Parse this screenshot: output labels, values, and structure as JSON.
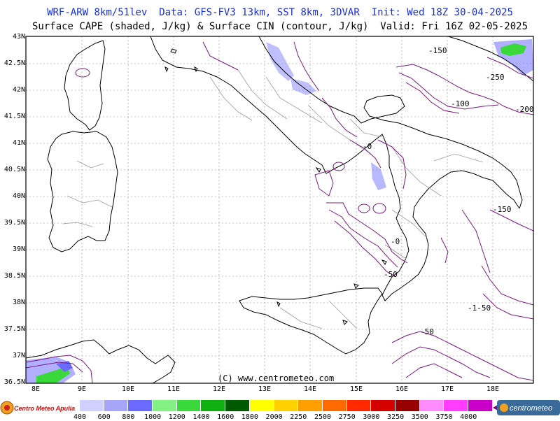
{
  "header": {
    "line1": "WRF-ARW 8km/51lev  Data: GFS-FV3 13km, SST 8km, 3DVAR  Init: Wed 18Z 30-04-2025",
    "line2": "Surface CAPE (shaded, J/kg) & Surface CIN (contour, J/kg)  Valid: Fri 16Z 02-05-2025"
  },
  "axes": {
    "lat_labels": [
      "43N",
      "42.5N",
      "42N",
      "41.5N",
      "41N",
      "40.5N",
      "40N",
      "39.5N",
      "39N",
      "38.5N",
      "38N",
      "37.5N",
      "37N",
      "36.5N"
    ],
    "lon_labels": [
      "8E",
      "9E",
      "10E",
      "11E",
      "12E",
      "13E",
      "14E",
      "15E",
      "16E",
      "17E",
      "18E"
    ]
  },
  "map": {
    "credit": "(C) www.centrometeo.com",
    "cin_labels": [
      "-150",
      "-250",
      "-100",
      "-200",
      "-0",
      "-150",
      "-0",
      "-50",
      "-1-50",
      "-50"
    ],
    "colors": {
      "coast": "#000000",
      "borders": "#9a9a9a",
      "cin": "#7a1a7a",
      "grid": "#8a8a8a"
    }
  },
  "legend": {
    "ticks": [
      "400",
      "600",
      "800",
      "1000",
      "1200",
      "1400",
      "1600",
      "1800",
      "2000",
      "2250",
      "2500",
      "2750",
      "3000",
      "3250",
      "3500",
      "3750",
      "4000"
    ],
    "colors": [
      "#d0d0ff",
      "#a6a6f8",
      "#6a6aff",
      "#82f082",
      "#3ad83a",
      "#10b010",
      "#005a00",
      "#ffff00",
      "#ffcf00",
      "#ffa000",
      "#ff6a00",
      "#ff2a00",
      "#d40000",
      "#960000",
      "#ff8cff",
      "#ff3cff",
      "#c800c8"
    ]
  },
  "logos": {
    "left": "Centro Meteo Apulia",
    "right": "centrometeo"
  }
}
